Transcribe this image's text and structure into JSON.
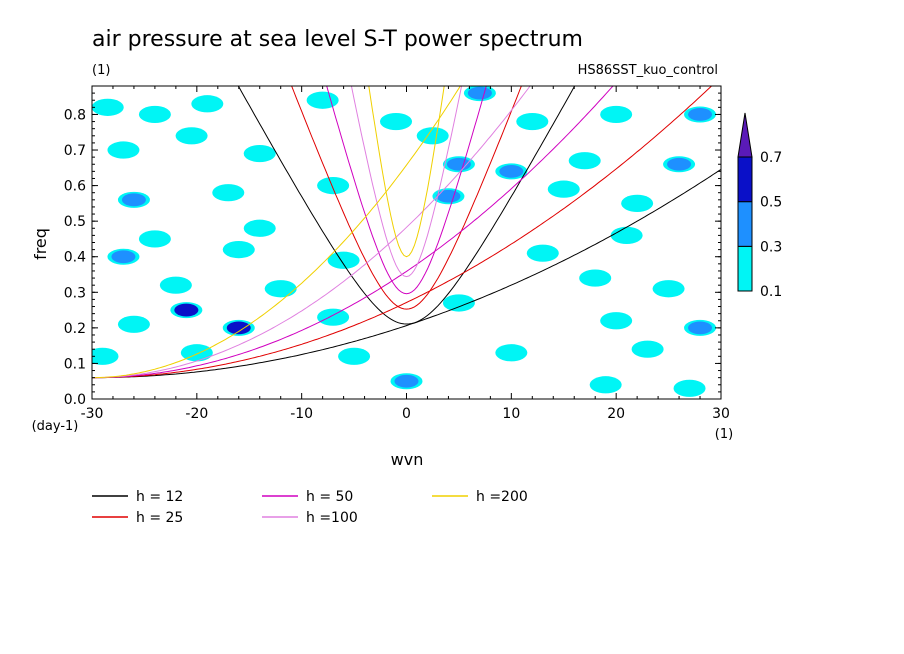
{
  "chart_data": {
    "type": "heatmap",
    "title": "air pressure at sea level S-T power spectrum",
    "subtitle_left": "(1)",
    "subtitle_right": "HS86SST_kuo_control",
    "xlabel": "wvn",
    "ylabel": "freq",
    "x_unit": "(1)",
    "y_unit": "(day-1)",
    "xlim": [
      -30,
      30
    ],
    "ylim": [
      0,
      0.88
    ],
    "x_ticks": [
      -30,
      -20,
      -10,
      0,
      10,
      20,
      30
    ],
    "x_tick_labels": [
      "-30",
      "-20",
      "-10",
      "0",
      "10",
      "20",
      "30"
    ],
    "y_ticks": [
      0,
      0.1,
      0.2,
      0.3,
      0.4,
      0.5,
      0.6,
      0.7,
      0.8
    ],
    "y_tick_labels": [
      "0.0",
      "0.1",
      "0.2",
      "0.3",
      "0.4",
      "0.5",
      "0.6",
      "0.7",
      "0.8"
    ],
    "colorbar": {
      "levels": [
        0.1,
        0.3,
        0.5,
        0.7
      ],
      "labels": [
        "0.1",
        "0.3",
        "0.5",
        "0.7"
      ],
      "colors": [
        "#00f5f5",
        "#1e90ff",
        "#0a10c8",
        "#5a1ab8"
      ]
    },
    "contour_patches": [
      {
        "x": -28.5,
        "y": 0.82,
        "level": 0.1
      },
      {
        "x": -24,
        "y": 0.8,
        "level": 0.1
      },
      {
        "x": -19,
        "y": 0.83,
        "level": 0.1
      },
      {
        "x": -8,
        "y": 0.84,
        "level": 0.1
      },
      {
        "x": -1,
        "y": 0.78,
        "level": 0.1
      },
      {
        "x": 7,
        "y": 0.86,
        "level": 0.3
      },
      {
        "x": 12,
        "y": 0.78,
        "level": 0.1
      },
      {
        "x": 20,
        "y": 0.8,
        "level": 0.1
      },
      {
        "x": 28,
        "y": 0.8,
        "level": 0.3
      },
      {
        "x": -27,
        "y": 0.7,
        "level": 0.1
      },
      {
        "x": -20.5,
        "y": 0.74,
        "level": 0.1
      },
      {
        "x": -14,
        "y": 0.69,
        "level": 0.1
      },
      {
        "x": 2.5,
        "y": 0.74,
        "level": 0.1
      },
      {
        "x": 5,
        "y": 0.66,
        "level": 0.3
      },
      {
        "x": 10,
        "y": 0.64,
        "level": 0.3
      },
      {
        "x": 17,
        "y": 0.67,
        "level": 0.1
      },
      {
        "x": 26,
        "y": 0.66,
        "level": 0.3
      },
      {
        "x": -26,
        "y": 0.56,
        "level": 0.3
      },
      {
        "x": -17,
        "y": 0.58,
        "level": 0.1
      },
      {
        "x": -7,
        "y": 0.6,
        "level": 0.1
      },
      {
        "x": 4,
        "y": 0.57,
        "level": 0.3
      },
      {
        "x": 15,
        "y": 0.59,
        "level": 0.1
      },
      {
        "x": 22,
        "y": 0.55,
        "level": 0.1
      },
      {
        "x": -24,
        "y": 0.45,
        "level": 0.1
      },
      {
        "x": -14,
        "y": 0.48,
        "level": 0.1
      },
      {
        "x": 21,
        "y": 0.46,
        "level": 0.1
      },
      {
        "x": -27,
        "y": 0.4,
        "level": 0.3
      },
      {
        "x": -16,
        "y": 0.42,
        "level": 0.1
      },
      {
        "x": -6,
        "y": 0.39,
        "level": 0.1
      },
      {
        "x": 13,
        "y": 0.41,
        "level": 0.1
      },
      {
        "x": -22,
        "y": 0.32,
        "level": 0.1
      },
      {
        "x": -12,
        "y": 0.31,
        "level": 0.1
      },
      {
        "x": 18,
        "y": 0.34,
        "level": 0.1
      },
      {
        "x": 25,
        "y": 0.31,
        "level": 0.1
      },
      {
        "x": -21,
        "y": 0.25,
        "level": 0.5
      },
      {
        "x": -16,
        "y": 0.2,
        "level": 0.5
      },
      {
        "x": -26,
        "y": 0.21,
        "level": 0.1
      },
      {
        "x": -7,
        "y": 0.23,
        "level": 0.1
      },
      {
        "x": 5,
        "y": 0.27,
        "level": 0.1
      },
      {
        "x": 20,
        "y": 0.22,
        "level": 0.1
      },
      {
        "x": 28,
        "y": 0.2,
        "level": 0.3
      },
      {
        "x": -29,
        "y": 0.12,
        "level": 0.1
      },
      {
        "x": -20,
        "y": 0.13,
        "level": 0.1
      },
      {
        "x": -5,
        "y": 0.12,
        "level": 0.1
      },
      {
        "x": 10,
        "y": 0.13,
        "level": 0.1
      },
      {
        "x": 23,
        "y": 0.14,
        "level": 0.1
      },
      {
        "x": 0,
        "y": 0.05,
        "level": 0.3
      },
      {
        "x": 19,
        "y": 0.04,
        "level": 0.1
      },
      {
        "x": 27,
        "y": 0.03,
        "level": 0.1
      }
    ],
    "dispersion_curves": [
      {
        "name": "h = 12",
        "h": 12,
        "color": "#000000"
      },
      {
        "name": "h = 25",
        "h": 25,
        "color": "#e00000"
      },
      {
        "name": "h = 50",
        "h": 50,
        "color": "#d000c0"
      },
      {
        "name": "h =100",
        "h": 100,
        "color": "#e080e0"
      },
      {
        "name": "h =200",
        "h": 200,
        "color": "#f0d000"
      }
    ]
  }
}
